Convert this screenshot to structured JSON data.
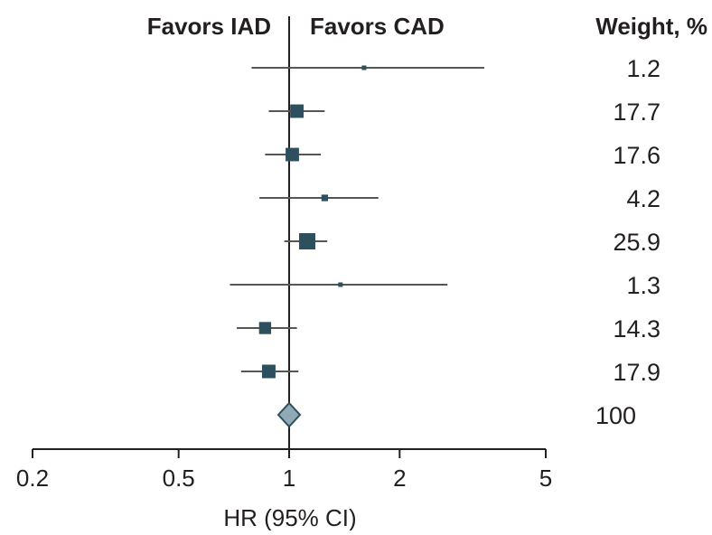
{
  "chart_data": {
    "type": "forest",
    "favors_left": "Favors IAD",
    "favors_right": "Favors CAD",
    "weight_header": "Weight, %",
    "xlabel": "HR (95% CI)",
    "x_scale": "log",
    "xlim": [
      0.2,
      5
    ],
    "x_ticks": [
      0.2,
      0.5,
      1,
      2,
      5
    ],
    "x_tick_labels": [
      "0.2",
      "0.5",
      "1",
      "2",
      "5"
    ],
    "reference_line": 1,
    "studies": [
      {
        "hr": 1.6,
        "ci": [
          0.79,
          3.4
        ],
        "weight": "1.2"
      },
      {
        "hr": 1.05,
        "ci": [
          0.88,
          1.25
        ],
        "weight": "17.7"
      },
      {
        "hr": 1.02,
        "ci": [
          0.86,
          1.22
        ],
        "weight": "17.6"
      },
      {
        "hr": 1.25,
        "ci": [
          0.83,
          1.75
        ],
        "weight": "4.2"
      },
      {
        "hr": 1.12,
        "ci": [
          0.97,
          1.27
        ],
        "weight": "25.9"
      },
      {
        "hr": 1.38,
        "ci": [
          0.69,
          2.7
        ],
        "weight": "1.3"
      },
      {
        "hr": 0.86,
        "ci": [
          0.72,
          1.05
        ],
        "weight": "14.3"
      },
      {
        "hr": 0.88,
        "ci": [
          0.74,
          1.06
        ],
        "weight": "17.9"
      }
    ],
    "pooled": {
      "hr": 1.0,
      "ci": [
        0.94,
        1.07
      ],
      "weight": "100"
    },
    "colors": {
      "marker": "#2d4f5e",
      "diamond_fill": "#8fa9b5",
      "diamond_stroke": "#2d4f5e",
      "line": "#555555",
      "axis": "#231f20"
    }
  }
}
